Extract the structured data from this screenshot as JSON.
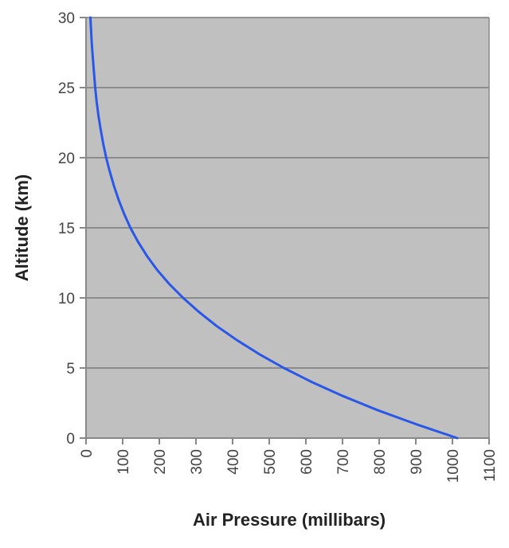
{
  "chart_data": {
    "type": "line",
    "xlabel": "Air Pressure (millibars)",
    "ylabel": "Altitude (km)",
    "xlim": [
      0,
      1100
    ],
    "ylim": [
      0,
      30
    ],
    "x_ticks": [
      "0",
      "100",
      "200",
      "300",
      "400",
      "500",
      "600",
      "700",
      "800",
      "900",
      "1000",
      "1100"
    ],
    "y_ticks": [
      "0",
      "5",
      "10",
      "15",
      "20",
      "25",
      "30"
    ],
    "grid": "horizontal",
    "legend": "none",
    "series": [
      {
        "x": [
          1013,
          900,
          795,
          701,
          616,
          540,
          472,
          411,
          356,
          308,
          265,
          227,
          194,
          166,
          142,
          121,
          104,
          89,
          76,
          65,
          55,
          47,
          40,
          34,
          29,
          25,
          22,
          19,
          16,
          14,
          12
        ],
        "y": [
          0,
          1,
          2,
          3,
          4,
          5,
          6,
          7,
          8,
          9,
          10,
          11,
          12,
          13,
          14,
          15,
          16,
          17,
          18,
          19,
          20,
          21,
          22,
          23,
          24,
          25,
          26,
          27,
          28,
          29,
          30
        ]
      }
    ],
    "colors": {
      "plot_background": "#c0c0c0",
      "grid": "#7a7a7a",
      "line": "#2957e8",
      "axis": "#888888"
    }
  }
}
